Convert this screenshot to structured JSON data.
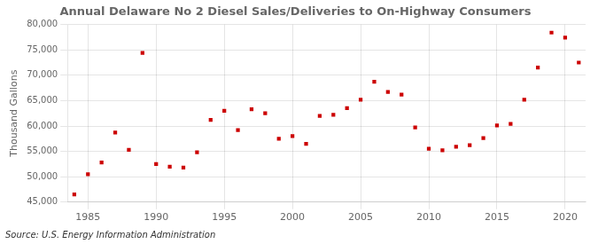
{
  "chart_data": {
    "type": "scatter",
    "title": "Annual Delaware No 2 Diesel Sales/Deliveries to On-Highway Consumers",
    "ylabel": "Thousand Gallons",
    "annotation": "Source: U.S. Energy Information Administration",
    "x": [
      1984,
      1985,
      1986,
      1987,
      1988,
      1989,
      1990,
      1991,
      1992,
      1993,
      1994,
      1995,
      1996,
      1997,
      1998,
      1999,
      2000,
      2001,
      2002,
      2003,
      2004,
      2005,
      2006,
      2007,
      2008,
      2009,
      2010,
      2011,
      2012,
      2013,
      2014,
      2015,
      2016,
      2017,
      2018,
      2019,
      2020,
      2021
    ],
    "values": [
      46500,
      50500,
      52800,
      58700,
      55300,
      74400,
      52500,
      52000,
      51800,
      54800,
      61200,
      63000,
      59200,
      63300,
      62500,
      57500,
      58000,
      56500,
      62000,
      62200,
      63500,
      65200,
      68700,
      66700,
      66200,
      59700,
      55500,
      55200,
      55900,
      56200,
      57600,
      60100,
      60400,
      65200,
      71500,
      78400,
      77400,
      72500
    ],
    "color": "#cc0000",
    "marker": "square",
    "xlim": [
      1983.5,
      2021.5
    ],
    "xticks": [
      1985,
      1990,
      1995,
      2000,
      2005,
      2010,
      2015,
      2020
    ],
    "ylim": [
      45000,
      80000
    ],
    "yticks": [
      {
        "value": 45000,
        "label": "45,000"
      },
      {
        "value": 50000,
        "label": "50,000"
      },
      {
        "value": 55000,
        "label": "55,000"
      },
      {
        "value": 60000,
        "label": "60,000"
      },
      {
        "value": 65000,
        "label": "65,000"
      },
      {
        "value": 70000,
        "label": "70,000"
      },
      {
        "value": 75000,
        "label": "75,000"
      },
      {
        "value": 80000,
        "label": "80,000"
      }
    ],
    "grid": true
  }
}
